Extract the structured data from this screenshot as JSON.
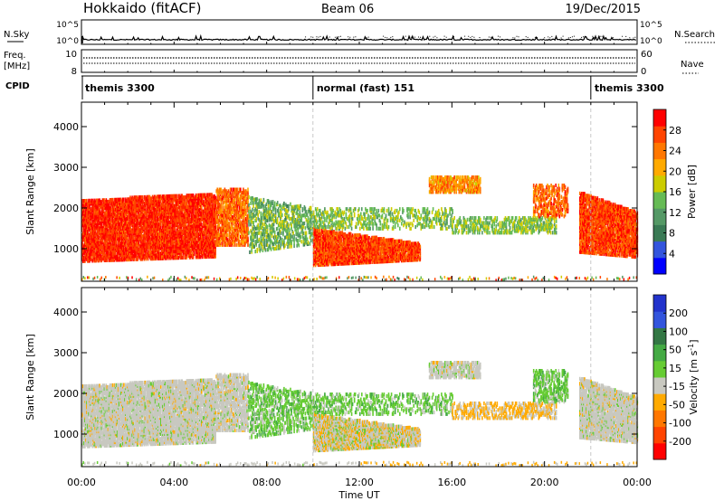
{
  "header": {
    "station": "Hokkaido (fitACF)",
    "beam": "Beam 06",
    "date": "19/Dec/2015"
  },
  "left_labels": {
    "nsky": "N.Sky",
    "freq_top": "Freq.",
    "freq_unit": "[MHz]",
    "cpid": "CPID"
  },
  "right_labels": {
    "nsearch": "N.Search",
    "nave": "Nave"
  },
  "cpid_segments": [
    {
      "label": "themis 3300",
      "start_hour": 0.0,
      "end_hour": 10.0
    },
    {
      "label": "normal (fast) 151",
      "start_hour": 10.0,
      "end_hour": 22.0
    },
    {
      "label": "themis 3300",
      "start_hour": 22.0,
      "end_hour": 24.0
    }
  ],
  "chart_data": [
    {
      "type": "line",
      "name": "noise",
      "ylabel_left": "N.Sky",
      "ylabel_right": "N.Search",
      "left_ticks": [
        "10^5",
        "10^0"
      ],
      "right_ticks": [
        "10^5",
        "10^0"
      ],
      "xlim": [
        0,
        24
      ]
    },
    {
      "type": "line",
      "name": "frequency-nave",
      "left_ticks": [
        "10",
        "8"
      ],
      "right_ticks": [
        "60",
        "0"
      ],
      "freq_mhz": 9.5,
      "xlim": [
        0,
        24
      ]
    },
    {
      "type": "heatmap",
      "name": "power",
      "ylabel": "Slant Range [km]",
      "ylim": [
        200,
        4600
      ],
      "yticks": [
        1000,
        2000,
        3000,
        4000
      ],
      "xlim": [
        0,
        24
      ],
      "colorbar": {
        "label": "Power [dB]",
        "ticks": [
          4,
          8,
          12,
          16,
          20,
          24,
          28
        ],
        "colors": [
          "#0000ff",
          "#3355dd",
          "#3a7a55",
          "#559966",
          "#66bb55",
          "#cccc00",
          "#ffaa00",
          "#ff7700",
          "#ff4400",
          "#ff0000"
        ]
      }
    },
    {
      "type": "heatmap",
      "name": "velocity",
      "ylabel": "Slant Range [km]",
      "ylim": [
        200,
        4600
      ],
      "yticks": [
        1000,
        2000,
        3000,
        4000
      ],
      "xlim": [
        0,
        24
      ],
      "colorbar": {
        "label_main": "Velocity [m s",
        "label_sup": "-1",
        "label_end": "]",
        "ticks": [
          "200",
          "100",
          "50",
          "15",
          "-15",
          "-50",
          "-100",
          "-200"
        ],
        "colors": [
          "#2233cc",
          "#3355dd",
          "#337744",
          "#44aa44",
          "#66cc33",
          "#c8c8c0",
          "#ffaa00",
          "#ff7700",
          "#ff4400",
          "#ff0000"
        ]
      }
    }
  ],
  "x_axis": {
    "label": "Time UT",
    "ticks": [
      "00:00",
      "04:00",
      "08:00",
      "12:00",
      "16:00",
      "20:00",
      "00:00"
    ]
  }
}
